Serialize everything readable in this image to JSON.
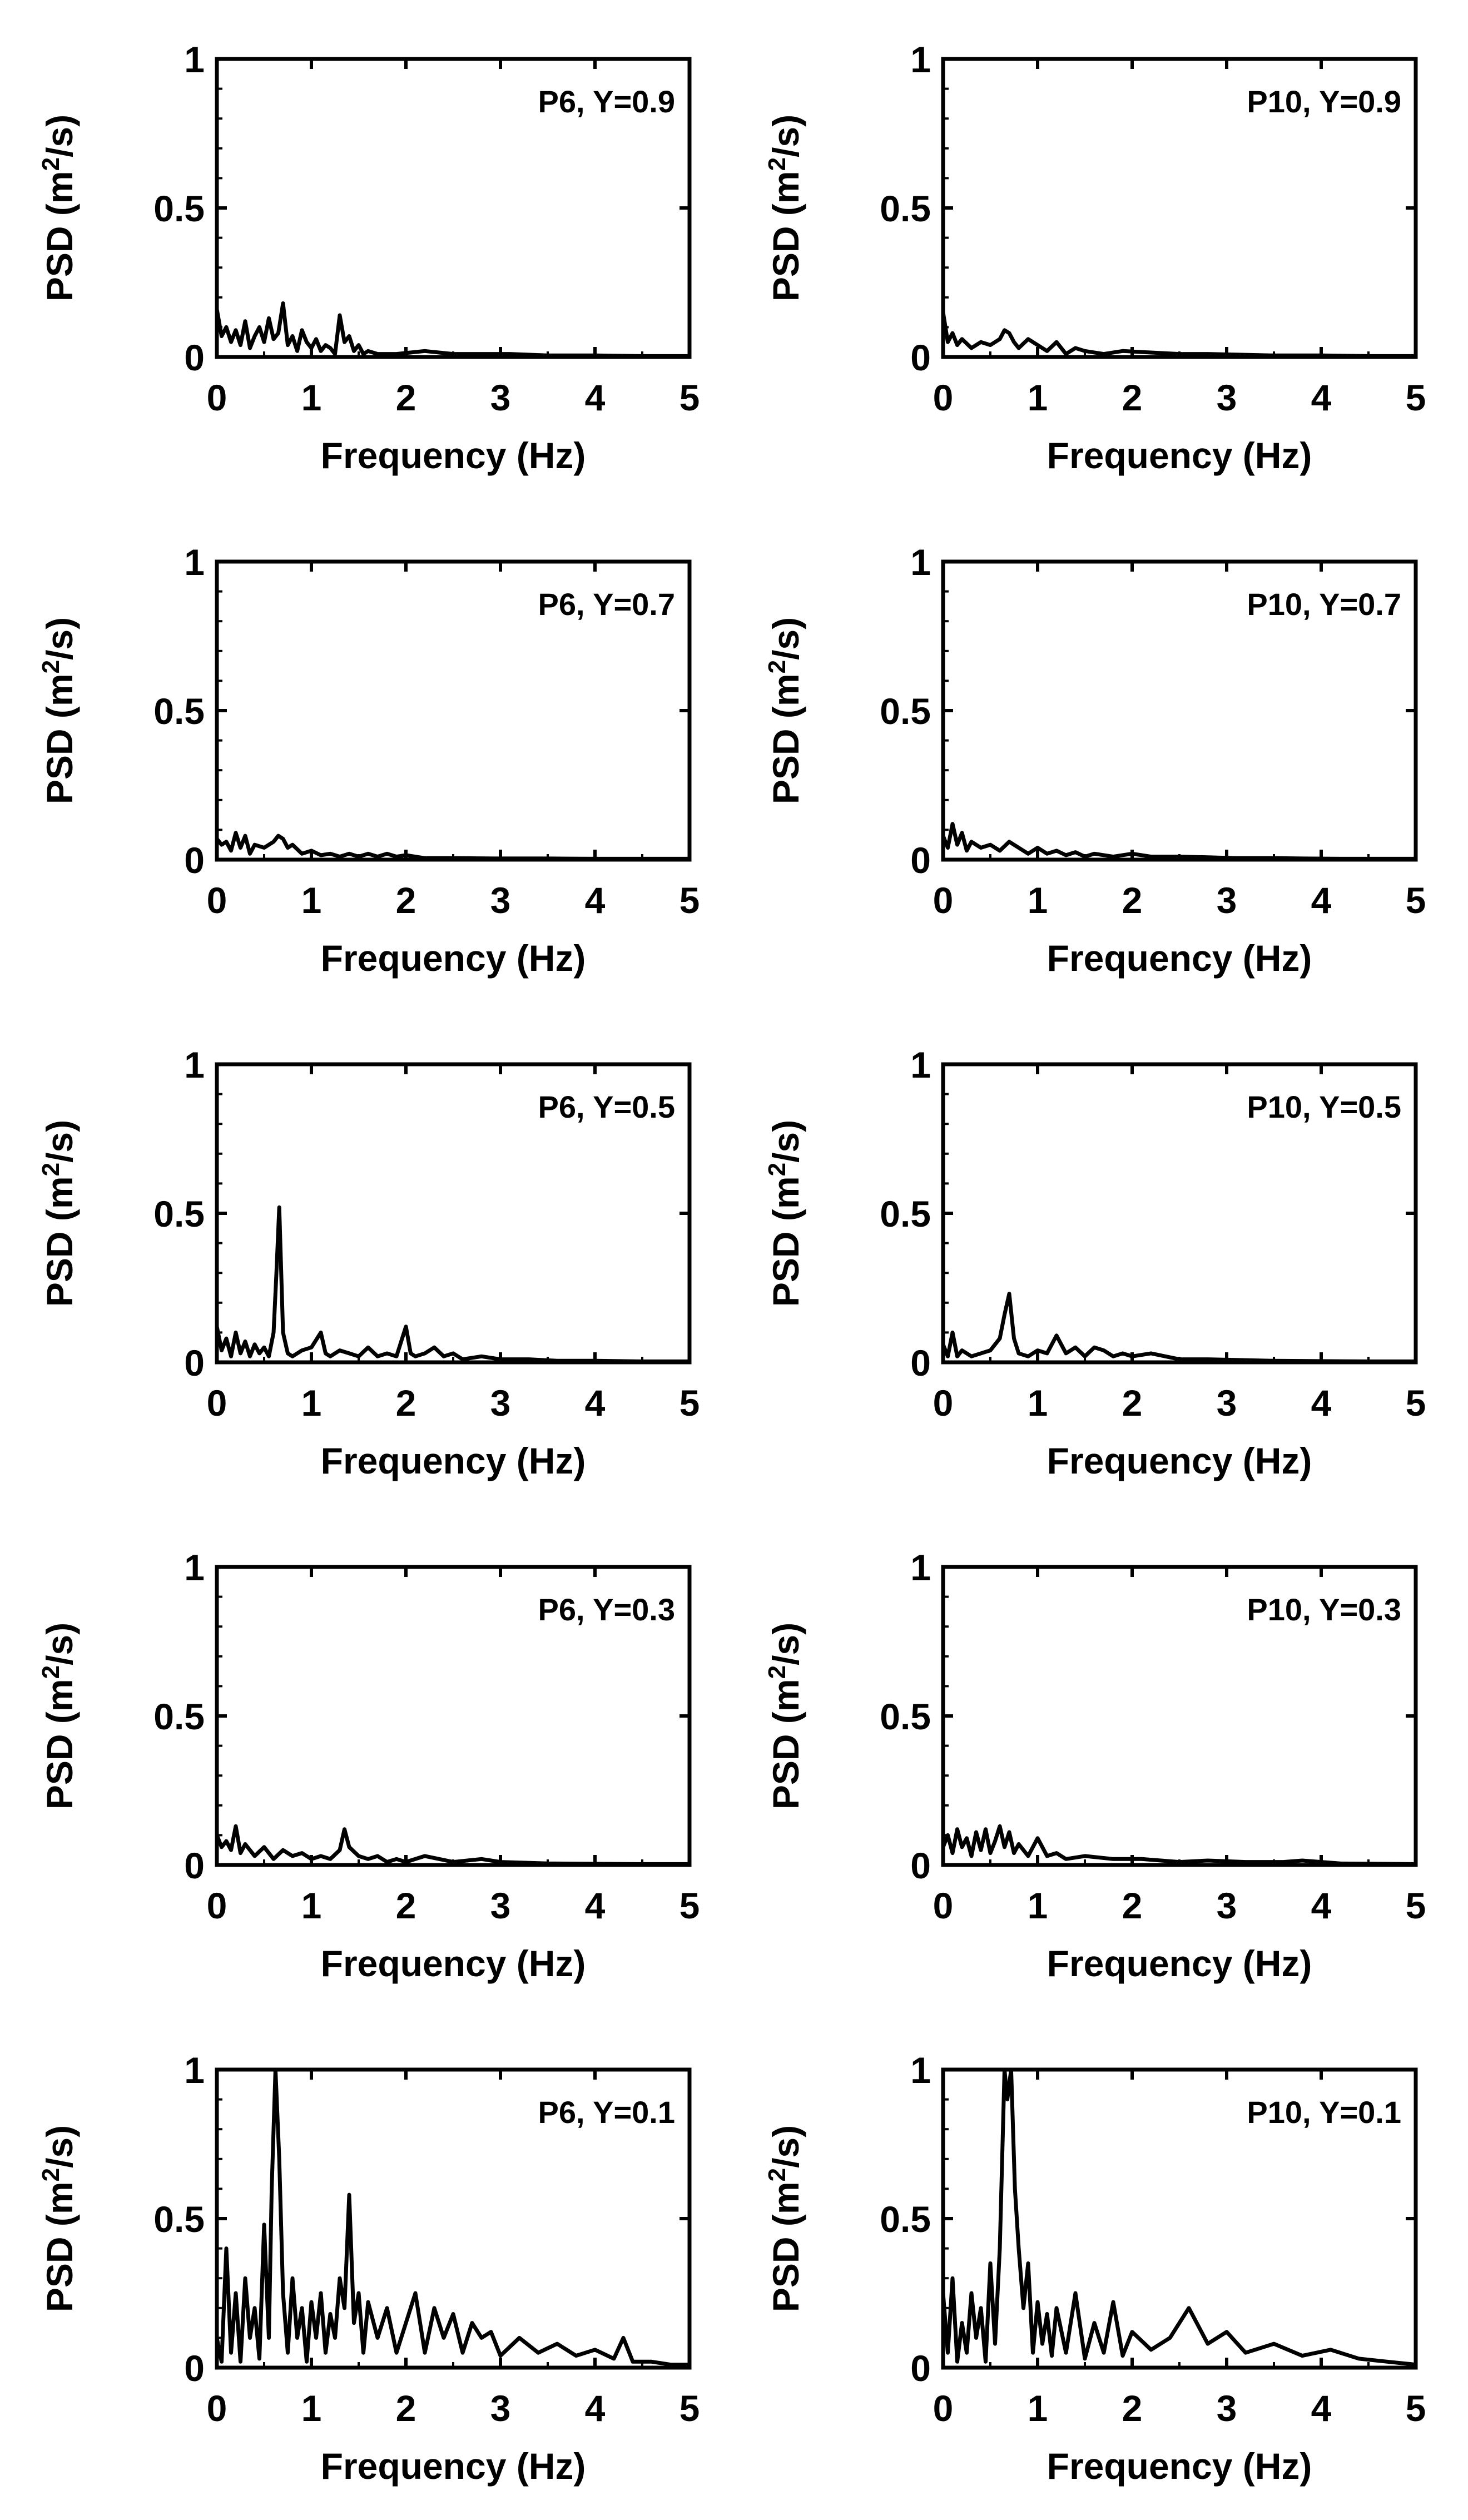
{
  "figure": {
    "stroke_color": "#000000",
    "background": "#ffffff"
  },
  "chart_data": [
    {
      "id": "p6_y09",
      "type": "line",
      "label": "P6, Y=0.9",
      "xlabel": "Frequency (Hz)",
      "ylabel_main": "PSD (m",
      "ylabel_sup": "2",
      "ylabel_end": "/s)",
      "xlim": [
        0,
        5
      ],
      "ylim": [
        0,
        1
      ],
      "xticks": [
        "0",
        "1",
        "2",
        "3",
        "4",
        "5"
      ],
      "yticks": [
        "0",
        "0.5",
        "1"
      ],
      "series": [
        {
          "name": "PSD",
          "x": [
            0,
            0.05,
            0.1,
            0.15,
            0.2,
            0.25,
            0.3,
            0.35,
            0.4,
            0.45,
            0.5,
            0.55,
            0.6,
            0.65,
            0.7,
            0.75,
            0.8,
            0.85,
            0.9,
            0.95,
            1.0,
            1.05,
            1.1,
            1.15,
            1.2,
            1.25,
            1.3,
            1.35,
            1.4,
            1.45,
            1.5,
            1.55,
            1.6,
            1.7,
            1.9,
            2.2,
            2.5,
            2.8,
            3.1,
            3.5,
            4,
            4.5,
            5
          ],
          "y": [
            0.16,
            0.07,
            0.1,
            0.05,
            0.09,
            0.04,
            0.12,
            0.03,
            0.07,
            0.1,
            0.05,
            0.13,
            0.06,
            0.08,
            0.18,
            0.04,
            0.07,
            0.02,
            0.09,
            0.05,
            0.03,
            0.06,
            0.02,
            0.04,
            0.03,
            0.01,
            0.14,
            0.05,
            0.07,
            0.02,
            0.04,
            0.01,
            0.02,
            0.01,
            0.01,
            0.02,
            0.01,
            0.01,
            0.01,
            0.005,
            0.005,
            0.003,
            0.003
          ]
        }
      ]
    },
    {
      "id": "p10_y09",
      "type": "line",
      "label": "P10, Y=0.9",
      "xlabel": "Frequency (Hz)",
      "ylabel_main": "PSD (m",
      "ylabel_sup": "2",
      "ylabel_end": "/s)",
      "xlim": [
        0,
        5
      ],
      "ylim": [
        0,
        1
      ],
      "xticks": [
        "0",
        "1",
        "2",
        "3",
        "4",
        "5"
      ],
      "yticks": [
        "0",
        "0.5",
        "1"
      ],
      "series": [
        {
          "name": "PSD",
          "x": [
            0,
            0.05,
            0.1,
            0.15,
            0.2,
            0.3,
            0.4,
            0.5,
            0.6,
            0.65,
            0.7,
            0.75,
            0.8,
            0.9,
            1.0,
            1.1,
            1.2,
            1.3,
            1.4,
            1.5,
            1.7,
            1.9,
            2.2,
            2.5,
            2.8,
            3.1,
            3.5,
            4,
            4.5,
            5
          ],
          "y": [
            0.15,
            0.05,
            0.08,
            0.04,
            0.06,
            0.03,
            0.05,
            0.04,
            0.06,
            0.09,
            0.08,
            0.05,
            0.03,
            0.06,
            0.04,
            0.02,
            0.05,
            0.01,
            0.03,
            0.02,
            0.01,
            0.02,
            0.015,
            0.01,
            0.01,
            0.008,
            0.005,
            0.005,
            0.003,
            0.003
          ]
        }
      ]
    },
    {
      "id": "p6_y07",
      "type": "line",
      "label": "P6, Y=0.7",
      "xlabel": "Frequency (Hz)",
      "ylabel_main": "PSD (m",
      "ylabel_sup": "2",
      "ylabel_end": "/s)",
      "xlim": [
        0,
        5
      ],
      "ylim": [
        0,
        1
      ],
      "xticks": [
        "0",
        "1",
        "2",
        "3",
        "4",
        "5"
      ],
      "yticks": [
        "0",
        "0.5",
        "1"
      ],
      "series": [
        {
          "name": "PSD",
          "x": [
            0,
            0.05,
            0.1,
            0.15,
            0.2,
            0.25,
            0.3,
            0.35,
            0.4,
            0.5,
            0.6,
            0.65,
            0.7,
            0.75,
            0.8,
            0.9,
            1.0,
            1.1,
            1.2,
            1.3,
            1.4,
            1.5,
            1.6,
            1.7,
            1.8,
            1.9,
            2.0,
            2.2,
            2.5,
            3,
            3.5,
            4,
            4.5,
            5
          ],
          "y": [
            0.07,
            0.05,
            0.06,
            0.03,
            0.09,
            0.04,
            0.08,
            0.02,
            0.05,
            0.04,
            0.06,
            0.08,
            0.07,
            0.04,
            0.05,
            0.02,
            0.03,
            0.015,
            0.02,
            0.01,
            0.02,
            0.01,
            0.02,
            0.01,
            0.02,
            0.01,
            0.015,
            0.005,
            0.005,
            0.004,
            0.004,
            0.003,
            0.003,
            0.003
          ]
        }
      ]
    },
    {
      "id": "p10_y07",
      "type": "line",
      "label": "P10, Y=0.7",
      "xlabel": "Frequency (Hz)",
      "ylabel_main": "PSD (m",
      "ylabel_sup": "2",
      "ylabel_end": "/s)",
      "xlim": [
        0,
        5
      ],
      "ylim": [
        0,
        1
      ],
      "xticks": [
        "0",
        "1",
        "2",
        "3",
        "4",
        "5"
      ],
      "yticks": [
        "0",
        "0.5",
        "1"
      ],
      "series": [
        {
          "name": "PSD",
          "x": [
            0,
            0.05,
            0.1,
            0.15,
            0.2,
            0.25,
            0.3,
            0.4,
            0.5,
            0.6,
            0.7,
            0.8,
            0.9,
            1.0,
            1.1,
            1.2,
            1.3,
            1.4,
            1.5,
            1.6,
            1.8,
            2.0,
            2.2,
            2.5,
            2.8,
            3.1,
            3.5,
            3.8,
            4.2,
            4.6,
            5
          ],
          "y": [
            0.08,
            0.04,
            0.12,
            0.05,
            0.09,
            0.03,
            0.06,
            0.04,
            0.05,
            0.03,
            0.06,
            0.04,
            0.02,
            0.04,
            0.02,
            0.03,
            0.015,
            0.025,
            0.01,
            0.02,
            0.01,
            0.02,
            0.01,
            0.01,
            0.008,
            0.005,
            0.005,
            0.004,
            0.003,
            0.003,
            0.003
          ]
        }
      ]
    },
    {
      "id": "p6_y05",
      "type": "line",
      "label": "P6, Y=0.5",
      "xlabel": "Frequency (Hz)",
      "ylabel_main": "PSD (m",
      "ylabel_sup": "2",
      "ylabel_end": "/s)",
      "xlim": [
        0,
        5
      ],
      "ylim": [
        0,
        1
      ],
      "xticks": [
        "0",
        "1",
        "2",
        "3",
        "4",
        "5"
      ],
      "yticks": [
        "0",
        "0.5",
        "1"
      ],
      "series": [
        {
          "name": "PSD",
          "x": [
            0,
            0.05,
            0.1,
            0.15,
            0.2,
            0.25,
            0.3,
            0.35,
            0.4,
            0.45,
            0.5,
            0.55,
            0.6,
            0.63,
            0.66,
            0.7,
            0.75,
            0.8,
            0.9,
            1.0,
            1.1,
            1.15,
            1.2,
            1.3,
            1.4,
            1.5,
            1.6,
            1.7,
            1.8,
            1.9,
            2.0,
            2.05,
            2.1,
            2.2,
            2.3,
            2.4,
            2.5,
            2.6,
            2.8,
            3.0,
            3.3,
            3.6,
            4,
            4.5,
            5
          ],
          "y": [
            0.12,
            0.04,
            0.08,
            0.02,
            0.1,
            0.03,
            0.07,
            0.02,
            0.06,
            0.03,
            0.05,
            0.02,
            0.1,
            0.3,
            0.52,
            0.1,
            0.03,
            0.02,
            0.04,
            0.05,
            0.1,
            0.03,
            0.02,
            0.04,
            0.03,
            0.02,
            0.05,
            0.02,
            0.03,
            0.02,
            0.12,
            0.03,
            0.02,
            0.03,
            0.05,
            0.02,
            0.03,
            0.01,
            0.02,
            0.01,
            0.01,
            0.005,
            0.005,
            0.003,
            0.003
          ]
        }
      ]
    },
    {
      "id": "p10_y05",
      "type": "line",
      "label": "P10, Y=0.5",
      "xlabel": "Frequency (Hz)",
      "ylabel_main": "PSD (m",
      "ylabel_sup": "2",
      "ylabel_end": "/s)",
      "xlim": [
        0,
        5
      ],
      "ylim": [
        0,
        1
      ],
      "xticks": [
        "0",
        "1",
        "2",
        "3",
        "4",
        "5"
      ],
      "yticks": [
        "0",
        "0.5",
        "1"
      ],
      "series": [
        {
          "name": "PSD",
          "x": [
            0,
            0.05,
            0.1,
            0.15,
            0.2,
            0.3,
            0.4,
            0.5,
            0.6,
            0.65,
            0.7,
            0.75,
            0.8,
            0.9,
            1.0,
            1.1,
            1.2,
            1.3,
            1.4,
            1.5,
            1.6,
            1.7,
            1.8,
            1.9,
            2.0,
            2.2,
            2.5,
            2.8,
            3.1,
            3.5,
            4,
            4.5,
            5
          ],
          "y": [
            0.06,
            0.02,
            0.1,
            0.02,
            0.04,
            0.02,
            0.03,
            0.04,
            0.08,
            0.16,
            0.23,
            0.08,
            0.03,
            0.02,
            0.04,
            0.03,
            0.09,
            0.03,
            0.05,
            0.02,
            0.05,
            0.04,
            0.02,
            0.03,
            0.02,
            0.03,
            0.01,
            0.01,
            0.008,
            0.005,
            0.004,
            0.003,
            0.003
          ]
        }
      ]
    },
    {
      "id": "p6_y03",
      "type": "line",
      "label": "P6, Y=0.3",
      "xlabel": "Frequency (Hz)",
      "ylabel_main": "PSD (m",
      "ylabel_sup": "2",
      "ylabel_end": "/s)",
      "xlim": [
        0,
        5
      ],
      "ylim": [
        0,
        1
      ],
      "xticks": [
        "0",
        "1",
        "2",
        "3",
        "4",
        "5"
      ],
      "yticks": [
        "0",
        "0.5",
        "1"
      ],
      "series": [
        {
          "name": "PSD",
          "x": [
            0,
            0.05,
            0.1,
            0.15,
            0.2,
            0.25,
            0.3,
            0.4,
            0.5,
            0.6,
            0.7,
            0.8,
            0.9,
            1.0,
            1.1,
            1.2,
            1.3,
            1.35,
            1.4,
            1.5,
            1.6,
            1.7,
            1.8,
            1.9,
            2.0,
            2.2,
            2.5,
            2.8,
            3.0,
            3.5,
            4,
            4.5,
            5
          ],
          "y": [
            0.1,
            0.06,
            0.08,
            0.05,
            0.13,
            0.04,
            0.07,
            0.03,
            0.06,
            0.02,
            0.05,
            0.03,
            0.04,
            0.02,
            0.03,
            0.02,
            0.05,
            0.12,
            0.06,
            0.03,
            0.02,
            0.03,
            0.01,
            0.02,
            0.01,
            0.03,
            0.01,
            0.02,
            0.01,
            0.005,
            0.004,
            0.003,
            0.003
          ]
        }
      ]
    },
    {
      "id": "p10_y03",
      "type": "line",
      "label": "P10, Y=0.3",
      "xlabel": "Frequency (Hz)",
      "ylabel_main": "PSD (m",
      "ylabel_sup": "2",
      "ylabel_end": "/s)",
      "xlim": [
        0,
        5
      ],
      "ylim": [
        0,
        1
      ],
      "xticks": [
        "0",
        "1",
        "2",
        "3",
        "4",
        "5"
      ],
      "yticks": [
        "0",
        "0.5",
        "1"
      ],
      "series": [
        {
          "name": "PSD",
          "x": [
            0,
            0.05,
            0.1,
            0.15,
            0.2,
            0.25,
            0.3,
            0.35,
            0.4,
            0.45,
            0.5,
            0.55,
            0.6,
            0.65,
            0.7,
            0.75,
            0.8,
            0.9,
            1.0,
            1.1,
            1.2,
            1.3,
            1.5,
            1.8,
            2.1,
            2.5,
            2.8,
            3.2,
            3.6,
            3.8,
            4.2,
            4.6,
            5
          ],
          "y": [
            0.06,
            0.1,
            0.04,
            0.12,
            0.06,
            0.09,
            0.03,
            0.11,
            0.05,
            0.12,
            0.04,
            0.08,
            0.13,
            0.06,
            0.11,
            0.04,
            0.07,
            0.03,
            0.09,
            0.03,
            0.04,
            0.02,
            0.03,
            0.02,
            0.02,
            0.01,
            0.015,
            0.01,
            0.01,
            0.015,
            0.005,
            0.004,
            0.003
          ]
        }
      ]
    },
    {
      "id": "p6_y01",
      "type": "line",
      "label": "P6, Y=0.1",
      "xlabel": "Frequency (Hz)",
      "ylabel_main": "PSD (m",
      "ylabel_sup": "2",
      "ylabel_end": "/s)",
      "xlim": [
        0,
        5
      ],
      "ylim": [
        0,
        1
      ],
      "xticks": [
        "0",
        "1",
        "2",
        "3",
        "4",
        "5"
      ],
      "yticks": [
        "0",
        "0.5",
        "1"
      ],
      "series": [
        {
          "name": "PSD",
          "x": [
            0,
            0.05,
            0.1,
            0.15,
            0.2,
            0.25,
            0.3,
            0.35,
            0.4,
            0.45,
            0.5,
            0.55,
            0.58,
            0.62,
            0.66,
            0.7,
            0.75,
            0.8,
            0.85,
            0.9,
            0.95,
            1.0,
            1.05,
            1.1,
            1.15,
            1.2,
            1.25,
            1.3,
            1.35,
            1.4,
            1.45,
            1.5,
            1.55,
            1.6,
            1.7,
            1.8,
            1.9,
            2.0,
            2.1,
            2.2,
            2.3,
            2.4,
            2.5,
            2.6,
            2.7,
            2.8,
            2.9,
            3.0,
            3.2,
            3.4,
            3.6,
            3.8,
            4.0,
            4.2,
            4.3,
            4.4,
            4.6,
            4.8,
            5
          ],
          "y": [
            0.1,
            0.02,
            0.4,
            0.05,
            0.25,
            0.02,
            0.3,
            0.1,
            0.2,
            0.03,
            0.48,
            0.1,
            0.6,
            1.0,
            0.7,
            0.25,
            0.05,
            0.3,
            0.1,
            0.2,
            0.02,
            0.22,
            0.1,
            0.25,
            0.05,
            0.18,
            0.1,
            0.3,
            0.2,
            0.58,
            0.15,
            0.25,
            0.05,
            0.22,
            0.1,
            0.2,
            0.05,
            0.15,
            0.25,
            0.05,
            0.2,
            0.1,
            0.18,
            0.05,
            0.15,
            0.1,
            0.12,
            0.04,
            0.1,
            0.05,
            0.08,
            0.04,
            0.06,
            0.03,
            0.1,
            0.02,
            0.02,
            0.01,
            0.01
          ]
        }
      ]
    },
    {
      "id": "p10_y01",
      "type": "line",
      "label": "P10, Y=0.1",
      "xlabel": "Frequency (Hz)",
      "ylabel_main": "PSD (m",
      "ylabel_sup": "2",
      "ylabel_end": "/s)",
      "xlim": [
        0,
        5
      ],
      "ylim": [
        0,
        1
      ],
      "xticks": [
        "0",
        "1",
        "2",
        "3",
        "4",
        "5"
      ],
      "yticks": [
        "0",
        "0.5",
        "1"
      ],
      "series": [
        {
          "name": "PSD",
          "x": [
            0,
            0.05,
            0.1,
            0.15,
            0.2,
            0.25,
            0.3,
            0.35,
            0.4,
            0.45,
            0.5,
            0.55,
            0.6,
            0.65,
            0.68,
            0.72,
            0.76,
            0.8,
            0.85,
            0.9,
            0.95,
            1.0,
            1.05,
            1.1,
            1.15,
            1.2,
            1.3,
            1.4,
            1.5,
            1.6,
            1.7,
            1.8,
            1.9,
            2.0,
            2.2,
            2.4,
            2.6,
            2.8,
            3.0,
            3.2,
            3.5,
            3.8,
            4.1,
            4.4,
            4.7,
            5
          ],
          "y": [
            0.25,
            0.05,
            0.3,
            0.02,
            0.15,
            0.05,
            0.25,
            0.1,
            0.2,
            0.02,
            0.35,
            0.08,
            0.4,
            1.0,
            0.9,
            1.0,
            0.6,
            0.4,
            0.2,
            0.35,
            0.05,
            0.22,
            0.08,
            0.18,
            0.04,
            0.2,
            0.05,
            0.25,
            0.03,
            0.15,
            0.05,
            0.22,
            0.04,
            0.12,
            0.06,
            0.1,
            0.2,
            0.08,
            0.12,
            0.05,
            0.08,
            0.04,
            0.06,
            0.03,
            0.02,
            0.01
          ]
        }
      ]
    }
  ]
}
